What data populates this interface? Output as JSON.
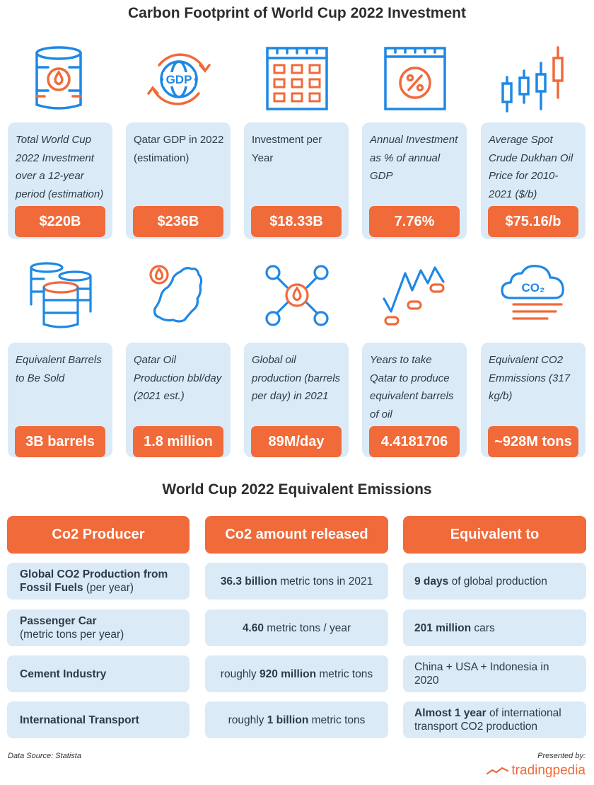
{
  "title": "Carbon Footprint of World Cup 2022 Investment",
  "colors": {
    "accent": "#f06a3a",
    "card": "#dbeaf7",
    "icon_blue": "#1e88e5"
  },
  "row1": [
    {
      "icon": "oil-barrel-icon",
      "label": "Total World Cup 2022 Investment over a 12-year period (estimation)",
      "value": "$220B"
    },
    {
      "icon": "gdp-cycle-icon",
      "label": "Qatar GDP in 2022 (estimation)",
      "value": "$236B",
      "gdp_text": "GDP"
    },
    {
      "icon": "calendar-icon",
      "label": "Investment per Year",
      "value": "$18.33B"
    },
    {
      "icon": "percent-calendar-icon",
      "label": "Annual Investment as % of annual GDP",
      "value": "7.76%"
    },
    {
      "icon": "candlestick-icon",
      "label": "Average Spot Crude Dukhan Oil Price for 2010-2021 ($/b)",
      "value": "$75.16/b"
    }
  ],
  "row2": [
    {
      "icon": "barrels-stack-icon",
      "label": "Equivalent Barrels to Be Sold",
      "value": "3B barrels"
    },
    {
      "icon": "qatar-map-icon",
      "label": "Qatar Oil Production bbl/day (2021 est.)",
      "value": "1.8 million"
    },
    {
      "icon": "oil-network-icon",
      "label": "Global oil production (barrels per day) in 2021",
      "value": "89M/day"
    },
    {
      "icon": "oil-trend-icon",
      "label": "Years to take Qatar to produce equivalent barrels of oil",
      "value": "4.4181706"
    },
    {
      "icon": "co2-cloud-icon",
      "label": "Equivalent CO2 Emmissions (317 kg/b)",
      "value": "~928M tons",
      "co2_text": "CO₂"
    }
  ],
  "table": {
    "title": "World Cup 2022 Equivalent Emissions",
    "headers": [
      "Co2 Producer",
      "Co2 amount released",
      "Equivalent to"
    ],
    "rows": [
      {
        "producer": {
          "bold": "Global CO2 Production from Fossil Fuels",
          "rest": " (per year)"
        },
        "amount": {
          "pre": "",
          "bold": "36.3 billion",
          "post": " metric tons in 2021"
        },
        "equiv": {
          "pre": "",
          "bold": "9 days",
          "post": " of global production"
        }
      },
      {
        "producer": {
          "bold": "Passenger Car",
          "rest": "(metric tons per year)"
        },
        "amount": {
          "pre": "",
          "bold": "4.60",
          "post": " metric tons / year"
        },
        "equiv": {
          "pre": "",
          "bold": "201 million",
          "post": " cars"
        }
      },
      {
        "producer": {
          "bold": "Cement Industry",
          "rest": ""
        },
        "amount": {
          "pre": "roughly ",
          "bold": "920 million",
          "post": " metric tons"
        },
        "equiv": {
          "pre": "China + USA + Indonesia in 2020",
          "bold": "",
          "post": ""
        }
      },
      {
        "producer": {
          "bold": "International Transport",
          "rest": ""
        },
        "amount": {
          "pre": "roughly ",
          "bold": "1 billion",
          "post": " metric tons"
        },
        "equiv": {
          "pre": "",
          "bold": "Almost 1 year",
          "post": " of international transport CO2 production"
        }
      }
    ]
  },
  "footer": {
    "source": "Data Source: Statista",
    "presented": "Presented by:",
    "brand": "tradingpedia"
  }
}
